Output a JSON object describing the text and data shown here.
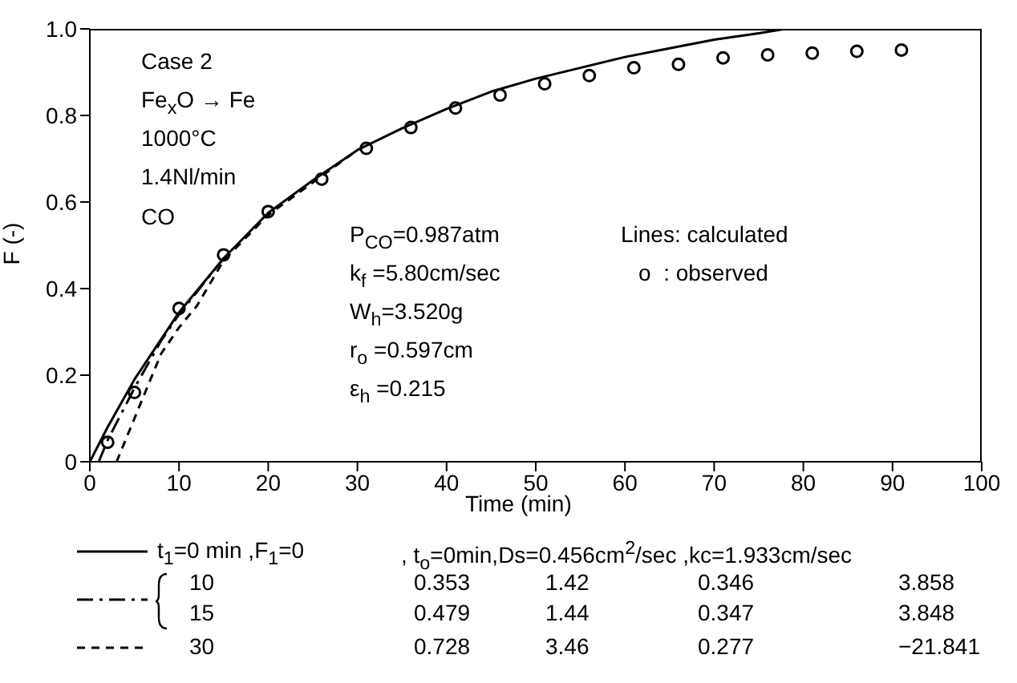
{
  "chart_data": {
    "type": "line",
    "xlabel": "Time (min)",
    "ylabel": "F (-)",
    "xlim": [
      0,
      100
    ],
    "xticks": [
      0,
      10,
      20,
      30,
      40,
      50,
      60,
      70,
      80,
      90,
      100
    ],
    "ylim": [
      0,
      1.0
    ],
    "yticks": [
      0,
      0.2,
      0.4,
      0.6,
      0.8,
      {
        "value": 1.0,
        "label": "1.0"
      }
    ],
    "grid": false,
    "legend": false,
    "series": [
      {
        "color": "#000000",
        "line_style": "solid",
        "marker": "none",
        "x": [
          0,
          2,
          5,
          10,
          15,
          20,
          25,
          30,
          35,
          40,
          45,
          50,
          55,
          60,
          65,
          70,
          75,
          78
        ],
        "values": [
          0,
          0.08,
          0.19,
          0.345,
          0.47,
          0.575,
          0.65,
          0.72,
          0.77,
          0.815,
          0.855,
          0.885,
          0.91,
          0.935,
          0.955,
          0.975,
          0.99,
          1.0
        ]
      },
      {
        "color": "#000000",
        "line_style": "dashdot",
        "marker": "none",
        "x": [
          1,
          2,
          5,
          8,
          10,
          15
        ],
        "values": [
          0,
          0.05,
          0.17,
          0.28,
          0.34,
          0.47
        ]
      },
      {
        "color": "#000000",
        "line_style": "dashed",
        "marker": "none",
        "x": [
          3,
          5,
          8,
          10,
          12,
          15,
          20,
          30
        ],
        "values": [
          0,
          0.1,
          0.25,
          0.31,
          0.36,
          0.465,
          0.57,
          0.72
        ]
      },
      {
        "type": "scatter",
        "color": "#000000",
        "marker": "circle",
        "x": [
          2,
          5,
          10,
          15,
          20,
          26,
          31,
          36,
          41,
          46,
          51,
          56,
          61,
          66,
          71,
          76,
          81,
          86,
          91
        ],
        "values": [
          0.045,
          0.16,
          0.354,
          0.478,
          0.578,
          0.653,
          0.724,
          0.772,
          0.817,
          0.847,
          0.873,
          0.892,
          0.91,
          0.918,
          0.933,
          0.94,
          0.944,
          0.948,
          0.951
        ]
      }
    ],
    "annotations": [
      "Case 2",
      "Fe$_{x}$O → Fe",
      "1000°C",
      "1.4Nl/min",
      "CO",
      "P$_{CO}$=0.987atm",
      "k$_{f}$ =5.80cm/sec",
      "W$_{h}$=3.520g",
      "r$_{o}$ =0.597cm",
      "ε$_{h}$ =0.215",
      "Lines: calculated",
      "o  : observed",
      "t$_{1}$=0 min ,F$_{1}$=0",
      ", t$_{o}$=0min,Ds=0.456cm$^{2}$/sec ,kc=1.933cm/sec",
      "10",
      "0.353",
      "1.42",
      "0.346",
      "3.858",
      "15",
      "0.479",
      "1.44",
      "0.347",
      "3.848",
      "30",
      "0.728",
      "3.46",
      "0.277",
      "−21.841"
    ]
  }
}
